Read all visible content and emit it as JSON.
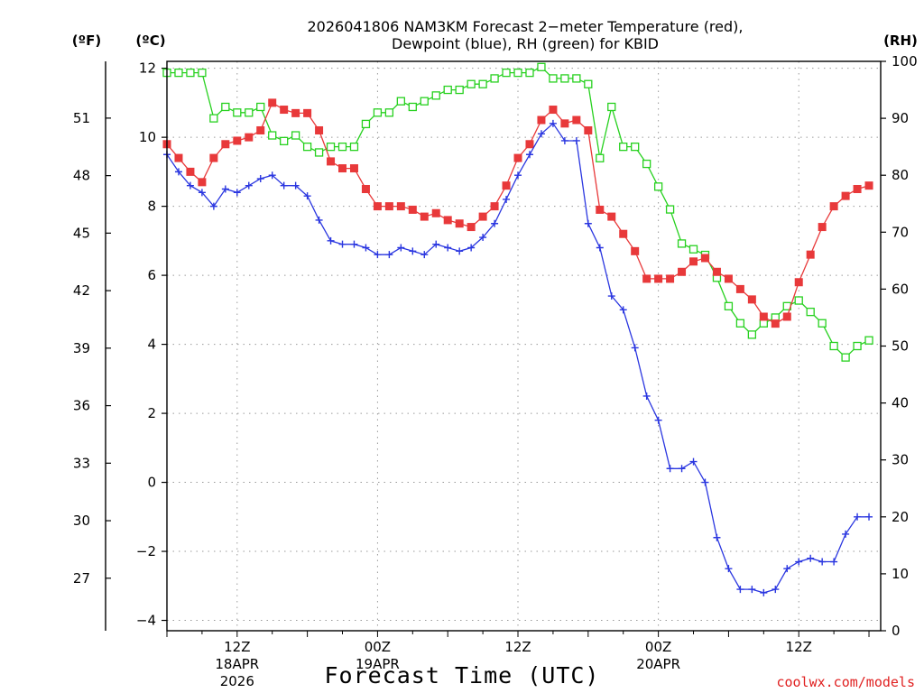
{
  "chart_data": {
    "type": "line",
    "title_line1": "2026041806 NAM3KM Forecast 2−meter Temperature (red),",
    "title_line2": "Dewpoint (blue), RH (green) for KBID",
    "xlabel": "Forecast Time (UTC)",
    "credit": "coolwx.com/models",
    "units": {
      "fahrenheit": "(ºF)",
      "celsius": "(ºC)",
      "rh": "(RH)"
    },
    "x_range_hours": [
      0,
      61
    ],
    "y_celsius_range": [
      -4.3,
      12.2
    ],
    "y_rh_range": [
      0,
      100
    ],
    "celsius_ticks": [
      "−4",
      "−2",
      "0",
      "2",
      "4",
      "6",
      "8",
      "10",
      "12"
    ],
    "celsius_tick_values": [
      -4,
      -2,
      0,
      2,
      4,
      6,
      8,
      10,
      12
    ],
    "fahrenheit_ticks": [
      "27",
      "30",
      "33",
      "36",
      "39",
      "42",
      "45",
      "48",
      "51"
    ],
    "fahrenheit_tick_values": [
      27,
      30,
      33,
      36,
      39,
      42,
      45,
      48,
      51
    ],
    "rh_ticks": [
      "0",
      "10",
      "20",
      "30",
      "40",
      "50",
      "60",
      "70",
      "80",
      "90",
      "100"
    ],
    "rh_tick_values": [
      0,
      10,
      20,
      30,
      40,
      50,
      60,
      70,
      80,
      90,
      100
    ],
    "x_ticks": [
      {
        "hour": 6,
        "label": "12Z",
        "date": "18APR",
        "year": "2026"
      },
      {
        "hour": 18,
        "label": "00Z",
        "date": "19APR",
        "year": ""
      },
      {
        "hour": 30,
        "label": "12Z",
        "date": "",
        "year": ""
      },
      {
        "hour": 42,
        "label": "00Z",
        "date": "20APR",
        "year": ""
      },
      {
        "hour": 54,
        "label": "12Z",
        "date": "",
        "year": ""
      }
    ],
    "series": [
      {
        "name": "Temperature (°C)",
        "color": "#e8393a",
        "marker": "filled-square",
        "axis": "celsius",
        "values": [
          9.8,
          9.4,
          9.0,
          8.7,
          9.4,
          9.8,
          9.9,
          10.0,
          10.2,
          11.0,
          10.8,
          10.7,
          10.7,
          10.2,
          9.3,
          9.1,
          9.1,
          8.5,
          8.0,
          8.0,
          8.0,
          7.9,
          7.7,
          7.8,
          7.6,
          7.5,
          7.4,
          7.7,
          8.0,
          8.6,
          9.4,
          9.8,
          10.5,
          10.8,
          10.4,
          10.5,
          10.2,
          7.9,
          7.7,
          7.2,
          6.7,
          5.9,
          5.9,
          5.9,
          6.1,
          6.4,
          6.5,
          6.1,
          5.9,
          5.6,
          5.3,
          4.8,
          4.6,
          4.8,
          5.8,
          6.6,
          7.4,
          8.0,
          8.3,
          8.5,
          8.6
        ]
      },
      {
        "name": "Dewpoint (°C)",
        "color": "#2a36e0",
        "marker": "plus",
        "axis": "celsius",
        "values": [
          9.5,
          9.0,
          8.6,
          8.4,
          8.0,
          8.5,
          8.4,
          8.6,
          8.8,
          8.9,
          8.6,
          8.6,
          8.3,
          7.6,
          7.0,
          6.9,
          6.9,
          6.8,
          6.6,
          6.6,
          6.8,
          6.7,
          6.6,
          6.9,
          6.8,
          6.7,
          6.8,
          7.1,
          7.5,
          8.2,
          8.9,
          9.5,
          10.1,
          10.4,
          9.9,
          9.9,
          7.5,
          6.8,
          5.4,
          5.0,
          3.9,
          2.5,
          1.8,
          0.4,
          0.4,
          0.6,
          0.0,
          -1.6,
          -2.5,
          -3.1,
          -3.1,
          -3.2,
          -3.1,
          -2.5,
          -2.3,
          -2.2,
          -2.3,
          -2.3,
          -1.5,
          -1.0,
          -1.0
        ]
      },
      {
        "name": "Relative Humidity (%)",
        "color": "#27d11f",
        "marker": "open-square",
        "axis": "rh",
        "values": [
          98,
          98,
          98,
          98,
          90,
          92,
          91,
          91,
          92,
          87,
          86,
          87,
          85,
          84,
          85,
          85,
          85,
          89,
          91,
          91,
          93,
          92,
          93,
          94,
          95,
          95,
          96,
          96,
          97,
          98,
          98,
          98,
          99,
          97,
          97,
          97,
          96,
          83,
          92,
          85,
          85,
          82,
          78,
          74,
          68,
          67,
          66,
          62,
          57,
          54,
          52,
          54,
          55,
          57,
          58,
          56,
          54,
          50,
          48,
          50,
          51
        ]
      }
    ]
  }
}
